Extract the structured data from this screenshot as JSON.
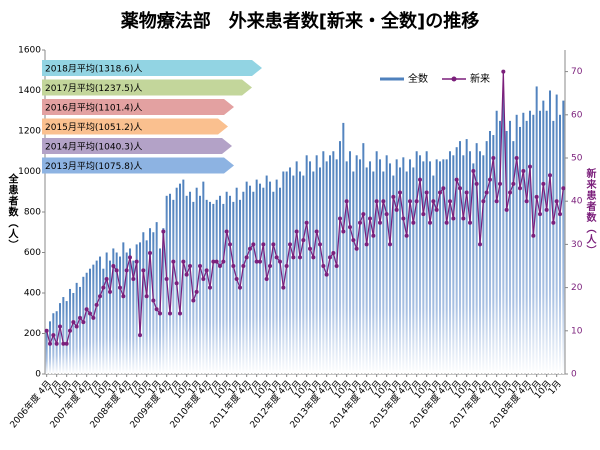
{
  "chart_data": {
    "type": "bar_line",
    "title": "薬物療法部　外来患者数[新来・全数]の推移",
    "y_label": "全患者数（人）",
    "y2_label": "新来患者数（人）",
    "legend": "top-right",
    "grid": false,
    "ylim": [
      0,
      1600
    ],
    "yticks": [
      0,
      200,
      400,
      600,
      800,
      1000,
      1200,
      1400,
      1600
    ],
    "y2lim": [
      0,
      75
    ],
    "y2ticks": [
      0,
      10,
      20,
      30,
      40,
      50,
      60,
      70
    ],
    "annotations": [
      {
        "text": "2018月平均(1318.6)人",
        "color": "#92d4e3"
      },
      {
        "text": "2017月平均(1237.5)人",
        "color": "#c3d69b"
      },
      {
        "text": "2016月平均(1101.4)人",
        "color": "#e3a1a1"
      },
      {
        "text": "2015月平均(1051.2)人",
        "color": "#fac08f"
      },
      {
        "text": "2014月平均(1040.3)人",
        "color": "#b3a2c7"
      },
      {
        "text": "2013月平均(1075.8)人",
        "color": "#8db3e2"
      }
    ],
    "categories": [
      "2006年度 4月",
      null,
      null,
      "7月",
      null,
      null,
      "10月",
      null,
      null,
      "1月",
      null,
      null,
      "2007年度 4月",
      null,
      null,
      "7月",
      null,
      null,
      "10月",
      null,
      null,
      "1月",
      null,
      null,
      "2008年度 4月",
      null,
      null,
      "7月",
      null,
      null,
      "10月",
      null,
      null,
      "1月",
      null,
      null,
      "2009年度 4月",
      null,
      null,
      "7月",
      null,
      null,
      "10月",
      null,
      null,
      "1月",
      null,
      null,
      "2010年度 4月",
      null,
      null,
      "7月",
      null,
      null,
      "10月",
      null,
      null,
      "1月",
      null,
      null,
      "2011年度 4月",
      null,
      null,
      "7月",
      null,
      null,
      "10月",
      null,
      null,
      "1月",
      null,
      null,
      "2012年度 4月",
      null,
      null,
      "7月",
      null,
      null,
      "10月",
      null,
      null,
      "1月",
      null,
      null,
      "2013年度 4月",
      null,
      null,
      "7月",
      null,
      null,
      "10月",
      null,
      null,
      "1月",
      null,
      null,
      "2014年度 4月",
      null,
      null,
      "7月",
      null,
      null,
      "10月",
      null,
      null,
      "1月",
      null,
      null,
      "2015年度 4月",
      null,
      null,
      "7月",
      null,
      null,
      "10月",
      null,
      null,
      "1月",
      null,
      null,
      "2016年度 4月",
      null,
      null,
      "7月",
      null,
      null,
      "10月",
      null,
      null,
      "1月",
      null,
      null,
      "2017年度 4月",
      null,
      null,
      "7月",
      null,
      null,
      "10月",
      null,
      null,
      "1月",
      null,
      null,
      "2018年度 4月",
      null,
      null,
      "7月",
      null,
      null,
      "10月",
      null,
      null,
      "1月",
      null,
      null
    ],
    "series": [
      {
        "name": "全数",
        "color": "#4f81bd",
        "values": [
          220,
          260,
          300,
          310,
          350,
          380,
          360,
          420,
          400,
          450,
          430,
          480,
          500,
          520,
          540,
          560,
          580,
          520,
          600,
          560,
          620,
          600,
          580,
          650,
          600,
          620,
          560,
          640,
          650,
          700,
          660,
          720,
          700,
          750,
          620,
          720,
          880,
          890,
          860,
          920,
          940,
          960,
          880,
          900,
          850,
          920,
          880,
          950,
          860,
          850,
          840,
          860,
          880,
          840,
          900,
          880,
          850,
          920,
          860,
          900,
          950,
          930,
          900,
          960,
          940,
          920,
          980,
          950,
          900,
          960,
          920,
          1000,
          1000,
          1020,
          980,
          1050,
          1000,
          980,
          1080,
          1050,
          1000,
          1080,
          1020,
          1100,
          1050,
          1080,
          1100,
          1060,
          1150,
          1240,
          1050,
          1100,
          1000,
          1080,
          1060,
          1140,
          1020,
          1050,
          1000,
          1100,
          1060,
          1000,
          1080,
          1040,
          980,
          1060,
          1020,
          1070,
          1000,
          1060,
          1020,
          1100,
          1080,
          1050,
          1100,
          1050,
          980,
          1060,
          1050,
          1060,
          1060,
          1100,
          1080,
          1120,
          1150,
          1080,
          1160,
          1100,
          1040,
          1140,
          1100,
          1080,
          1150,
          1200,
          1180,
          1300,
          1250,
          1380,
          1200,
          1250,
          1150,
          1280,
          1220,
          1290,
          1250,
          1300,
          1280,
          1420,
          1300,
          1350,
          1300,
          1400,
          1250,
          1380,
          1280,
          1350
        ]
      },
      {
        "name": "新来",
        "color": "#7b1f7b",
        "axis": "y2",
        "values": [
          10,
          7,
          9,
          7,
          11,
          7,
          7,
          10,
          12,
          11,
          13,
          12,
          15,
          14,
          13,
          16,
          18,
          20,
          22,
          19,
          25,
          24,
          20,
          18,
          24,
          27,
          22,
          26,
          9,
          24,
          18,
          28,
          17,
          15,
          14,
          33,
          22,
          14,
          26,
          21,
          14,
          26,
          23,
          25,
          17,
          19,
          25,
          22,
          24,
          20,
          26,
          26,
          25,
          26,
          33,
          30,
          25,
          22,
          20,
          25,
          27,
          29,
          30,
          26,
          26,
          30,
          22,
          25,
          30,
          27,
          26,
          20,
          25,
          30,
          27,
          33,
          27,
          31,
          35,
          29,
          27,
          33,
          30,
          25,
          23,
          27,
          28,
          25,
          36,
          33,
          40,
          34,
          31,
          29,
          35,
          37,
          30,
          36,
          32,
          40,
          35,
          40,
          37,
          30,
          41,
          38,
          42,
          36,
          32,
          40,
          35,
          40,
          45,
          37,
          42,
          35,
          40,
          38,
          42,
          43,
          35,
          40,
          36,
          45,
          43,
          36,
          42,
          35,
          47,
          44,
          30,
          40,
          42,
          45,
          50,
          40,
          44,
          70,
          38,
          42,
          44,
          50,
          43,
          47,
          40,
          48,
          32,
          41,
          37,
          44,
          38,
          46,
          35,
          40,
          37,
          43
        ]
      }
    ]
  }
}
